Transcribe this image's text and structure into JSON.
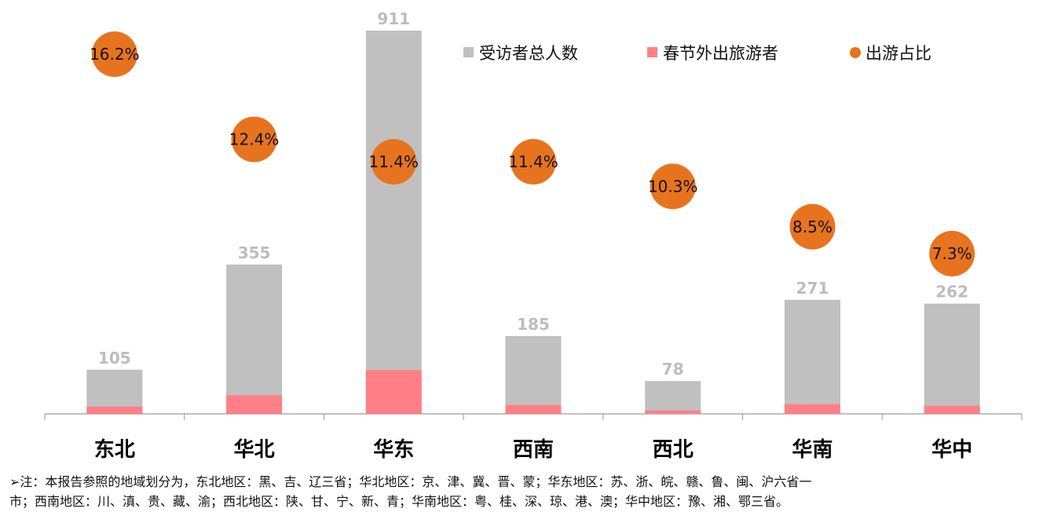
{
  "chart_data": {
    "type": "bar",
    "categories": [
      "东北",
      "华北",
      "华东",
      "西南",
      "西北",
      "华南",
      "华中"
    ],
    "series": [
      {
        "name": "受访者总人数",
        "type": "bar",
        "color": "#c0c0c0",
        "values": [
          105,
          355,
          911,
          185,
          78,
          271,
          262
        ]
      },
      {
        "name": "春节外出旅游者",
        "type": "bar",
        "color": "#ff7f86",
        "values": [
          17,
          44,
          104,
          21,
          8,
          23,
          19
        ]
      },
      {
        "name": "出游占比",
        "type": "bubble",
        "color": "#e8731f",
        "values": [
          16.2,
          12.4,
          11.4,
          11.4,
          10.3,
          8.5,
          7.3
        ]
      }
    ],
    "value_labels": [
      "105",
      "355",
      "911",
      "185",
      "78",
      "271",
      "262"
    ],
    "percent_labels": [
      "16.2%",
      "12.4%",
      "11.4%",
      "11.4%",
      "10.3%",
      "8.5%",
      "7.3%"
    ],
    "ylim": [
      0,
      911
    ],
    "grid": false,
    "legend_position": "top-right"
  },
  "note": {
    "line1": "➢注：本报告参照的地域划分为，东北地区：黑、吉、辽三省；华北地区：京、津、冀、晋、蒙；华东地区：苏、浙、皖、赣、鲁、闽、沪六省一",
    "line2": "市；西南地区：川、滇、贵、藏、渝；西北地区：陕、甘、宁、新、青；华南地区：粤、桂、深、琼、港、澳；华中地区：豫、湘、鄂三省。"
  }
}
